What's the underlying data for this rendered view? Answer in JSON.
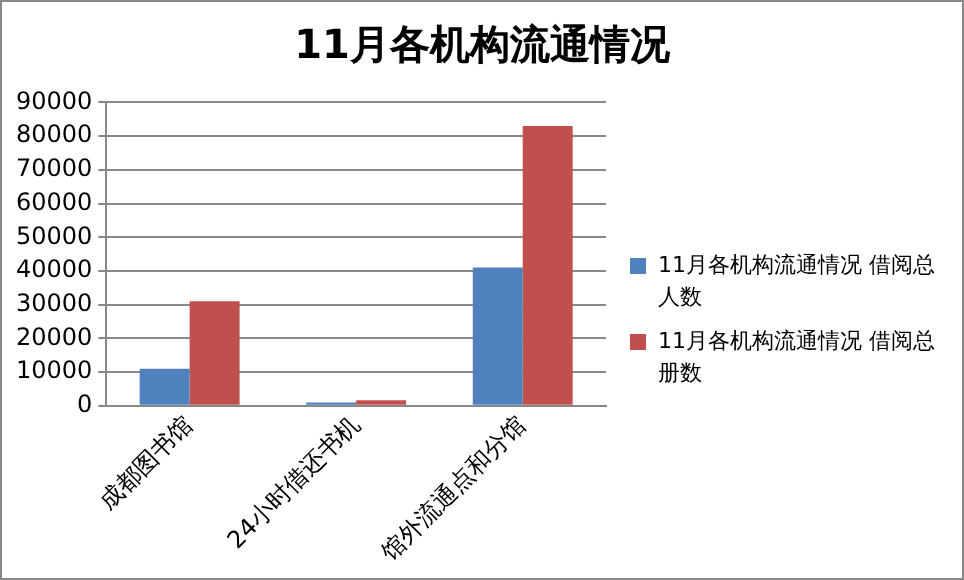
{
  "chart_data": {
    "type": "bar",
    "title": "11月各机构流通情况",
    "categories": [
      "成都图书馆",
      "24小时借还书机",
      "馆外流通点和分馆"
    ],
    "series": [
      {
        "name": "11月各机构流通情况 借阅总人数",
        "color": "#4f81bd",
        "values": [
          11000,
          1000,
          41000
        ]
      },
      {
        "name": "11月各机构流通情况 借阅总册数",
        "color": "#c0504d",
        "values": [
          31000,
          1700,
          83000
        ]
      }
    ],
    "ylim": [
      0,
      90000
    ],
    "yticks": [
      0,
      10000,
      20000,
      30000,
      40000,
      50000,
      60000,
      70000,
      80000,
      90000
    ],
    "grid": "y",
    "legend": "right"
  }
}
